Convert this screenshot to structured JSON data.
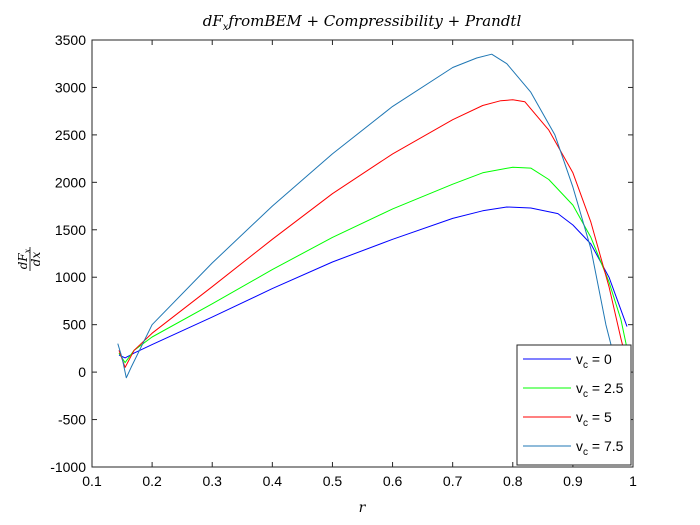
{
  "chart_data": {
    "type": "line",
    "title": "dF_x from BEM + Compressibility + Prandtl",
    "title_parts": [
      "dF",
      "x",
      "fromBEM + Compressibility + Prandtl"
    ],
    "xlabel": "r",
    "ylabel": "dF_x/dx",
    "ylabel_parts": {
      "num": "dF",
      "num_sub": "x",
      "den": "dx"
    },
    "xlim": [
      0.1,
      1.0
    ],
    "ylim": [
      -1000,
      3500
    ],
    "xticks": [
      "0.1",
      "0.2",
      "0.3",
      "0.4",
      "0.5",
      "0.6",
      "0.7",
      "0.8",
      "0.9",
      "1"
    ],
    "yticks": [
      "-1000",
      "-500",
      "0",
      "500",
      "1000",
      "1500",
      "2000",
      "2500",
      "3000",
      "3500"
    ],
    "grid": false,
    "legend_position": "bottom-right",
    "series": [
      {
        "name": "v_c = 0",
        "legend_parts": [
          "v",
          "c",
          " = 0"
        ],
        "color": "#0000ff",
        "x": [
          0.145,
          0.155,
          0.17,
          0.2,
          0.3,
          0.4,
          0.5,
          0.6,
          0.7,
          0.75,
          0.79,
          0.83,
          0.875,
          0.9,
          0.93,
          0.96,
          0.99
        ],
        "y": [
          180,
          150,
          200,
          290,
          580,
          880,
          1160,
          1400,
          1620,
          1700,
          1740,
          1730,
          1670,
          1550,
          1350,
          1000,
          480
        ]
      },
      {
        "name": "v_c = 2.5",
        "legend_parts": [
          "v",
          "c",
          " = 2.5"
        ],
        "color": "#00ff00",
        "x": [
          0.145,
          0.155,
          0.17,
          0.2,
          0.3,
          0.4,
          0.5,
          0.6,
          0.7,
          0.75,
          0.8,
          0.83,
          0.86,
          0.9,
          0.93,
          0.96,
          0.98,
          0.99
        ],
        "y": [
          200,
          100,
          230,
          370,
          720,
          1080,
          1420,
          1720,
          1980,
          2100,
          2160,
          2150,
          2030,
          1760,
          1420,
          950,
          550,
          250
        ]
      },
      {
        "name": "v_c = 5",
        "legend_parts": [
          "v",
          "c",
          " = 5"
        ],
        "color": "#ff0000",
        "x": [
          0.145,
          0.155,
          0.17,
          0.2,
          0.3,
          0.4,
          0.5,
          0.6,
          0.7,
          0.75,
          0.78,
          0.8,
          0.82,
          0.86,
          0.9,
          0.93,
          0.96,
          0.98,
          0.99
        ],
        "y": [
          230,
          50,
          230,
          410,
          900,
          1400,
          1880,
          2300,
          2660,
          2810,
          2860,
          2870,
          2850,
          2550,
          2100,
          1580,
          900,
          350,
          100
        ]
      },
      {
        "name": "v_c = 7.5",
        "legend_parts": [
          "v",
          "c",
          " = 7.5"
        ],
        "color": "#1f77b4",
        "x": [
          0.143,
          0.15,
          0.157,
          0.165,
          0.2,
          0.3,
          0.4,
          0.5,
          0.6,
          0.7,
          0.74,
          0.765,
          0.79,
          0.83,
          0.87,
          0.9,
          0.93,
          0.955,
          0.975,
          0.99
        ],
        "y": [
          300,
          150,
          -60,
          50,
          500,
          1150,
          1750,
          2300,
          2800,
          3210,
          3310,
          3350,
          3250,
          2950,
          2500,
          1950,
          1300,
          500,
          0,
          -150
        ]
      }
    ]
  }
}
